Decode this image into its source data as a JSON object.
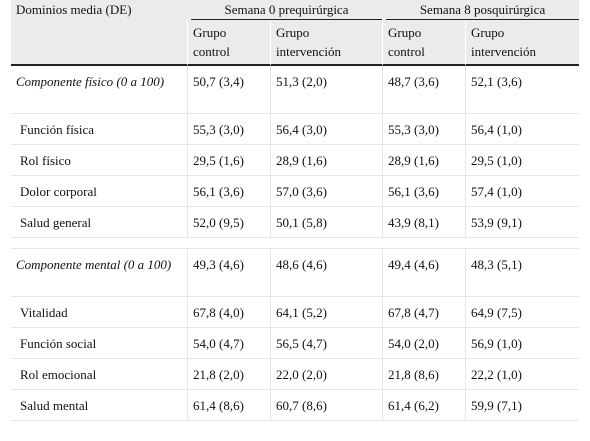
{
  "header": {
    "col0": "Dominios media (DE)",
    "group1": "Semana 0 prequirúrgica",
    "group2": "Semana 8 posquirúrgica",
    "sub": [
      {
        "l1": "Grupo",
        "l2": "control"
      },
      {
        "l1": "Grupo",
        "l2": "intervención"
      },
      {
        "l1": "Grupo",
        "l2": "control"
      },
      {
        "l1": "Grupo",
        "l2": "intervención"
      }
    ]
  },
  "sections": [
    {
      "component": {
        "label": "Componente físico (0 a 100)",
        "values": [
          "50,7 (3,4)",
          "51,3 (2,0)",
          "48,7 (3,6)",
          "52,1 (3,6)"
        ]
      },
      "rows": [
        {
          "label": "Función física",
          "values": [
            "55,3 (3,0)",
            "56,4 (3,0)",
            "55,3 (3,0)",
            "56,4 (1,0)"
          ]
        },
        {
          "label": "Rol físico",
          "values": [
            "29,5 (1,6)",
            "28,9 (1,6)",
            "28,9 (1,6)",
            "29,5 (1,0)"
          ]
        },
        {
          "label": "Dolor corporal",
          "values": [
            "56,1 (3,6)",
            "57,0 (3,6)",
            "56,1 (3,6)",
            "57,4 (1,0)"
          ]
        },
        {
          "label": "Salud general",
          "values": [
            "52,0 (9,5)",
            "50,1 (5,8)",
            "43,9 (8,1)",
            "53,9 (9,1)"
          ]
        }
      ]
    },
    {
      "component": {
        "label": "Componente mental (0 a 100)",
        "values": [
          "49,3 (4,6)",
          "48,6 (4,6)",
          "49,4 (4,6)",
          "48,3 (5,1)"
        ]
      },
      "rows": [
        {
          "label": "Vitalidad",
          "values": [
            "67,8 (4,0)",
            "64,1 (5,2)",
            "67,8 (4,7)",
            "64,9 (7,5)"
          ]
        },
        {
          "label": "Función social",
          "values": [
            "54,0 (4,7)",
            "56,5 (4,7)",
            "54,0 (2,0)",
            "56,9 (1,0)"
          ]
        },
        {
          "label": "Rol emocional",
          "values": [
            "21,8 (2,0)",
            "22,0 (2,0)",
            "21,8 (8,6)",
            "22,2 (1,0)"
          ]
        },
        {
          "label": "Salud mental",
          "values": [
            "61,4 (8,6)",
            "60,7 (8,6)",
            "61,4 (6,2)",
            "59,9 (7,1)"
          ]
        }
      ]
    }
  ]
}
